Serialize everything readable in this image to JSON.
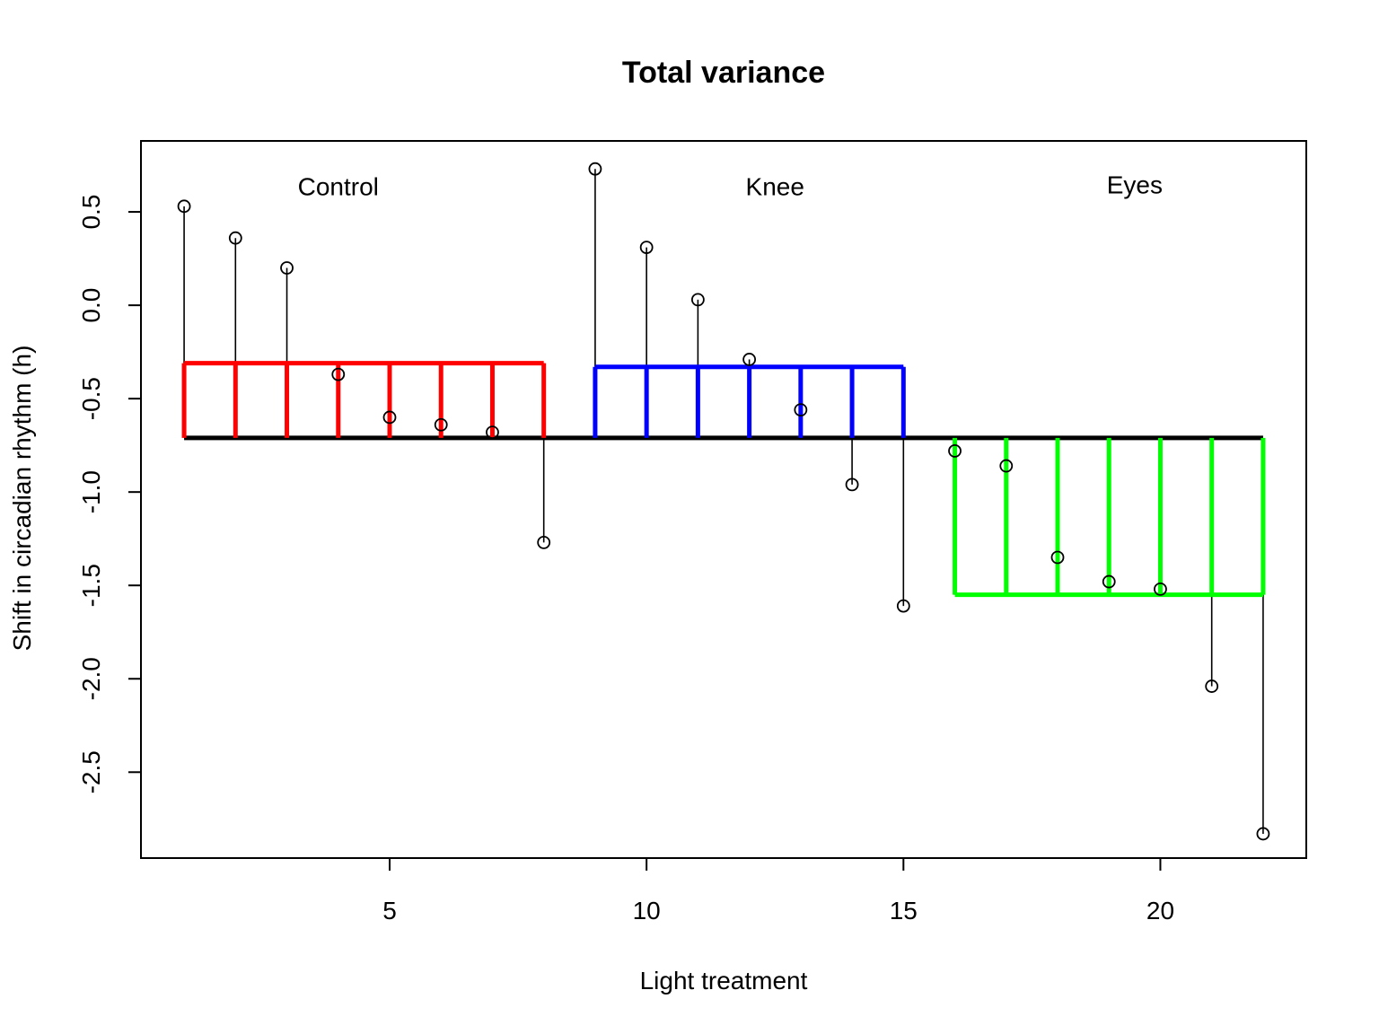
{
  "chart_data": {
    "type": "scatter",
    "title": "Total variance",
    "xlabel": "Light treatment",
    "ylabel": "Shift in circadian rhythm (h)",
    "xlim": [
      0.16,
      22.84
    ],
    "ylim": [
      -2.96,
      0.88
    ],
    "xticks": [
      5,
      10,
      15,
      20
    ],
    "yticks": [
      0.5,
      0.0,
      -0.5,
      -1.0,
      -1.5,
      -2.0,
      -2.5
    ],
    "ytick_labels": [
      "0.5",
      "0.0",
      "-0.5",
      "-1.0",
      "-1.5",
      "-2.0",
      "-2.5"
    ],
    "grand_mean": -0.71,
    "grand_mean_color": "#000000",
    "groups": [
      {
        "label": "Control",
        "color": "#ff0000",
        "mean": -0.31,
        "x_start": 1,
        "x_end": 8,
        "label_x": 4,
        "label_y": 0.59
      },
      {
        "label": "Knee",
        "color": "#0000ff",
        "mean": -0.33,
        "x_start": 9,
        "x_end": 15,
        "label_x": 12.5,
        "label_y": 0.59
      },
      {
        "label": "Eyes",
        "color": "#00ff00",
        "mean": -1.55,
        "x_start": 16,
        "x_end": 22,
        "label_x": 19.5,
        "label_y": 0.6
      }
    ],
    "points": [
      {
        "x": 1,
        "y": 0.53
      },
      {
        "x": 2,
        "y": 0.36
      },
      {
        "x": 3,
        "y": 0.2
      },
      {
        "x": 4,
        "y": -0.37
      },
      {
        "x": 5,
        "y": -0.6
      },
      {
        "x": 6,
        "y": -0.64
      },
      {
        "x": 7,
        "y": -0.68
      },
      {
        "x": 8,
        "y": -1.27
      },
      {
        "x": 9,
        "y": 0.73
      },
      {
        "x": 10,
        "y": 0.31
      },
      {
        "x": 11,
        "y": 0.03
      },
      {
        "x": 12,
        "y": -0.29
      },
      {
        "x": 13,
        "y": -0.56
      },
      {
        "x": 14,
        "y": -0.96
      },
      {
        "x": 15,
        "y": -1.61
      },
      {
        "x": 16,
        "y": -0.78
      },
      {
        "x": 17,
        "y": -0.86
      },
      {
        "x": 18,
        "y": -1.35
      },
      {
        "x": 19,
        "y": -1.48
      },
      {
        "x": 20,
        "y": -1.52
      },
      {
        "x": 21,
        "y": -2.04
      },
      {
        "x": 22,
        "y": -2.83
      }
    ]
  }
}
